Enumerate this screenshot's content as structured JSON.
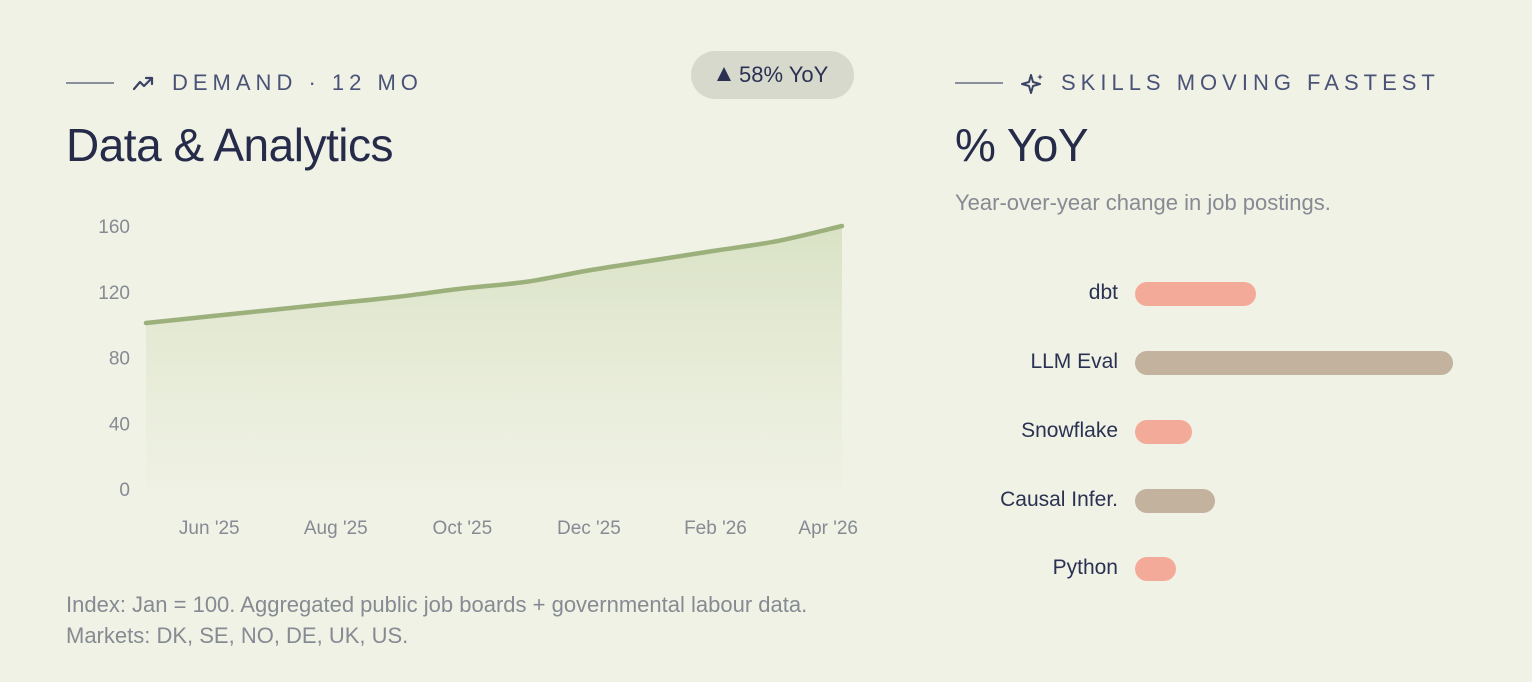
{
  "left_panel": {
    "eyebrow": "DEMAND · 12 MO",
    "eyebrow_icon": "trending-up-icon",
    "badge": "58% YoY",
    "title": "Data & Analytics",
    "footnote": "Index: Jan = 100. Aggregated public job boards + governmental labour data. Markets: DK, SE, NO, DE, UK, US."
  },
  "right_panel": {
    "eyebrow": "SKILLS MOVING FASTEST",
    "eyebrow_icon": "sparkle-icon",
    "title": "% YoY",
    "subtitle": "Year-over-year change in job postings."
  },
  "colors": {
    "line": "#9cb07c",
    "area_top": "#dfe6cd",
    "bar_salmon": "#f3aa98",
    "bar_taupe": "#c2b29e",
    "text_dark": "#2b3152",
    "text_muted": "#868a93"
  },
  "chart_data": [
    {
      "type": "area",
      "x_tick_labels": [
        "Jun '25",
        "Aug '25",
        "Oct '25",
        "Dec '25",
        "Feb '26",
        "Apr '26"
      ],
      "x": [
        "May '25",
        "Jun '25",
        "Jul '25",
        "Aug '25",
        "Sep '25",
        "Oct '25",
        "Nov '25",
        "Dec '25",
        "Jan '26",
        "Feb '26",
        "Mar '26",
        "Apr '26"
      ],
      "values": [
        101,
        105,
        109,
        113,
        117,
        122,
        126,
        133,
        139,
        145,
        151,
        160
      ],
      "y_ticks": [
        0,
        40,
        80,
        120,
        160
      ],
      "ylim": [
        0,
        160
      ],
      "grid": false
    },
    {
      "type": "bar",
      "orientation": "horizontal",
      "categories": [
        "dbt",
        "LLM Eval",
        "Snowflake",
        "Causal Infer.",
        "Python"
      ],
      "values": [
        38,
        100,
        18,
        25,
        13
      ],
      "colors": [
        "#f3aa98",
        "#c2b29e",
        "#f3aa98",
        "#c2b29e",
        "#f3aa98"
      ]
    }
  ]
}
